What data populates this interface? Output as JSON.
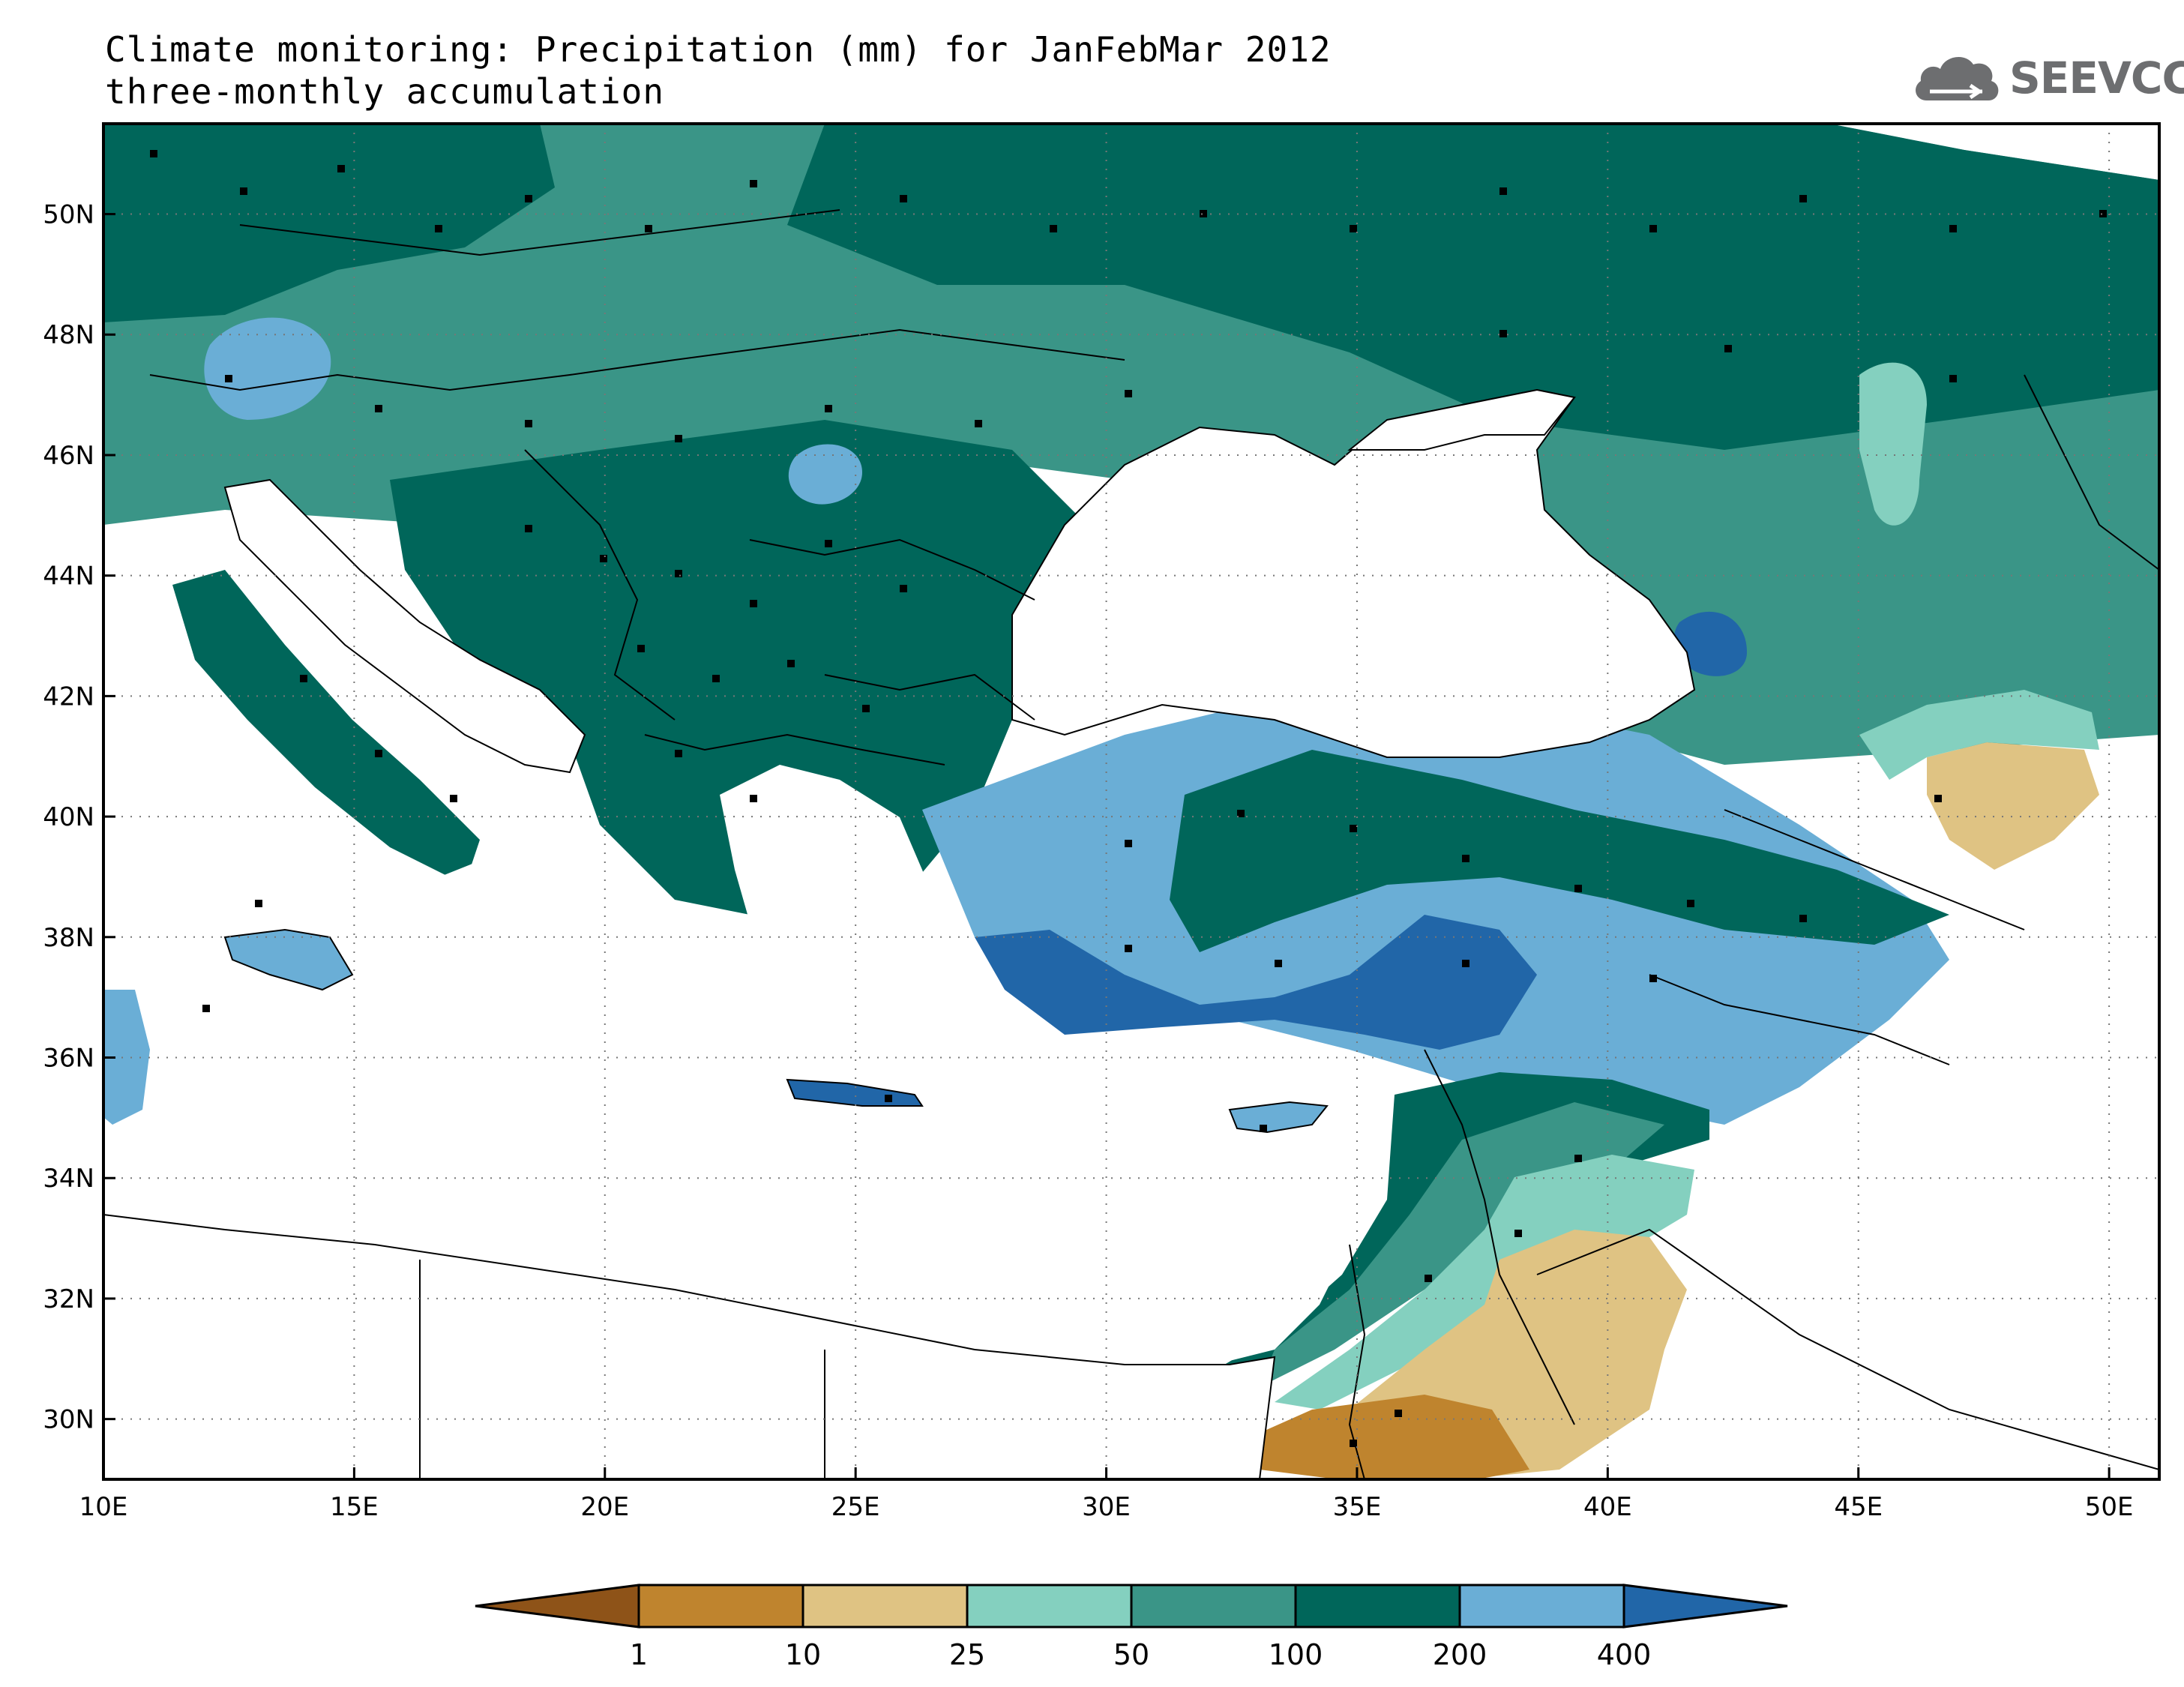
{
  "title": {
    "line1": "Climate monitoring: Precipitation (mm) for JanFebMar 2012",
    "line2": "three-monthly accumulation"
  },
  "logo": {
    "text": "SEEVCCC",
    "icon": "cloud-icon"
  },
  "map": {
    "lon_range": [
      10,
      51
    ],
    "lat_range": [
      29,
      51.5
    ],
    "lon_ticks": [
      {
        "value": 10,
        "label": "10E"
      },
      {
        "value": 15,
        "label": "15E"
      },
      {
        "value": 20,
        "label": "20E"
      },
      {
        "value": 25,
        "label": "25E"
      },
      {
        "value": 30,
        "label": "30E"
      },
      {
        "value": 35,
        "label": "35E"
      },
      {
        "value": 40,
        "label": "40E"
      },
      {
        "value": 45,
        "label": "45E"
      },
      {
        "value": 50,
        "label": "50E"
      }
    ],
    "lat_ticks": [
      {
        "value": 30,
        "label": "30N"
      },
      {
        "value": 32,
        "label": "32N"
      },
      {
        "value": 34,
        "label": "34N"
      },
      {
        "value": 36,
        "label": "36N"
      },
      {
        "value": 38,
        "label": "38N"
      },
      {
        "value": 40,
        "label": "40N"
      },
      {
        "value": 42,
        "label": "42N"
      },
      {
        "value": 44,
        "label": "44N"
      },
      {
        "value": 46,
        "label": "46N"
      },
      {
        "value": 48,
        "label": "48N"
      },
      {
        "value": 50,
        "label": "50N"
      }
    ],
    "grid": true
  },
  "legend": {
    "thresholds": [
      "1",
      "10",
      "25",
      "50",
      "100",
      "200",
      "400"
    ],
    "colors": [
      "#8e5318",
      "#bf842e",
      "#dfc383",
      "#84d0bf",
      "#3a9587",
      "#00665a",
      "#6aaed6",
      "#2166a8"
    ]
  }
}
